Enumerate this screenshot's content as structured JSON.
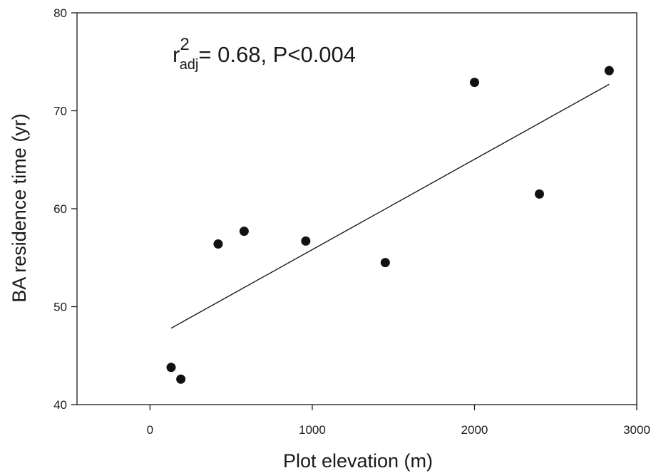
{
  "chart_data": {
    "type": "scatter",
    "title": "",
    "xlabel": "Plot elevation (m)",
    "ylabel": "BA residence time (yr)",
    "xlim": [
      -450,
      3000
    ],
    "ylim": [
      40,
      80
    ],
    "xticks": [
      0,
      1000,
      2000,
      3000
    ],
    "yticks": [
      40,
      50,
      60,
      70,
      80
    ],
    "xtick_labels": [
      "0",
      "1000",
      "2000",
      "3000"
    ],
    "ytick_labels": [
      "40",
      "50",
      "60",
      "70",
      "80"
    ],
    "grid": false,
    "legend": "none",
    "points": [
      {
        "x": 130,
        "y": 43.8
      },
      {
        "x": 190,
        "y": 42.6
      },
      {
        "x": 420,
        "y": 56.4
      },
      {
        "x": 580,
        "y": 57.7
      },
      {
        "x": 960,
        "y": 56.7
      },
      {
        "x": 1450,
        "y": 54.5
      },
      {
        "x": 2000,
        "y": 72.9
      },
      {
        "x": 2400,
        "y": 61.5
      },
      {
        "x": 2830,
        "y": 74.1
      }
    ],
    "fit_line": {
      "x": [
        130,
        2830
      ],
      "y": [
        47.8,
        72.7
      ]
    },
    "annotation": {
      "base": "r",
      "superscript": "2",
      "subscript": "adj",
      "rest": "= 0.68, P<0.004"
    },
    "colors": {
      "marker": "#111111",
      "line": "#1a1a1a",
      "axis": "#1a1a1a"
    }
  }
}
